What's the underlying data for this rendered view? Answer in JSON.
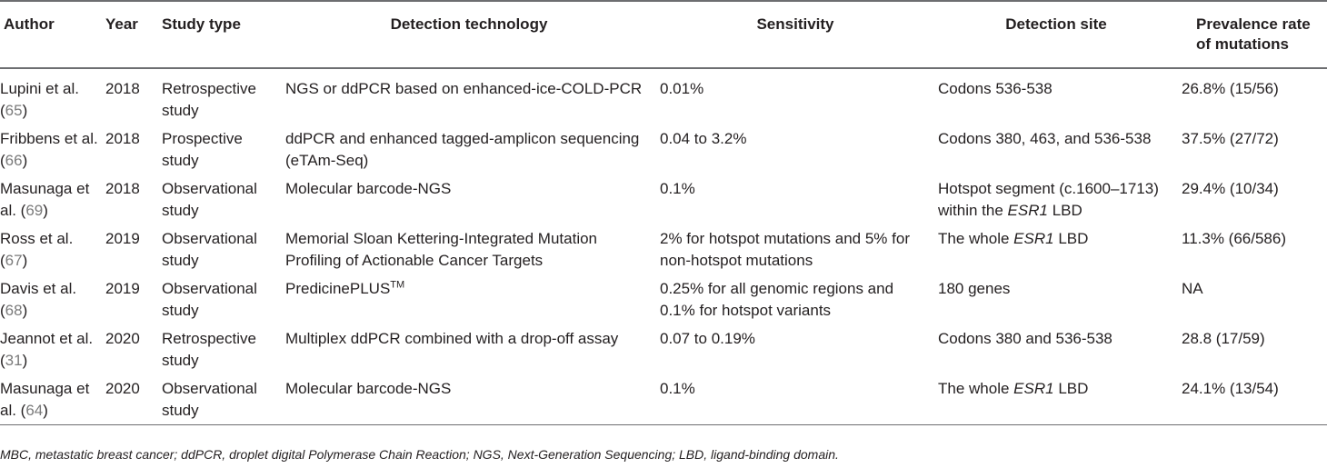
{
  "headers": {
    "author": "Author",
    "year": "Year",
    "study_type": "Study type",
    "detection_technology": "Detection technology",
    "sensitivity": "Sensitivity",
    "detection_site": "Detection site",
    "prevalence_line1": "Prevalence rate",
    "prevalence_line2": "of mutations"
  },
  "rows": [
    {
      "author_name": "Lupini",
      "author_etal": "et al. (",
      "ref": "65",
      "author_close": ")",
      "year": "2018",
      "study_type": "Retrospective study",
      "technology": "NGS or ddPCR based on enhanced-ice-COLD-PCR",
      "sensitivity": "0.01%",
      "site_pre": "Codons 536-538",
      "site_gene": "",
      "site_post": "",
      "prevalence": "26.8% (15/56)"
    },
    {
      "author_name": "Fribbens",
      "author_etal": "et al. (",
      "ref": "66",
      "author_close": ")",
      "year": "2018",
      "study_type": "Prospective study",
      "technology": "ddPCR and enhanced tagged-amplicon sequencing (eTAm-Seq)",
      "sensitivity": "0.04 to 3.2%",
      "site_pre": "Codons 380, 463, and 536-538",
      "site_gene": "",
      "site_post": "",
      "prevalence": "37.5% (27/72)"
    },
    {
      "author_name": "Masunaga",
      "author_etal": "et al. (",
      "ref": "69",
      "author_close": ")",
      "year": "2018",
      "study_type": "Observational study",
      "technology": "Molecular barcode-NGS",
      "sensitivity": "0.1%",
      "site_pre": "Hotspot segment (c.1600–1713) within the ",
      "site_gene": "ESR1",
      "site_post": " LBD",
      "prevalence": "29.4% (10/34)"
    },
    {
      "author_name": "Ross et al.",
      "author_etal": " (",
      "ref": "67",
      "author_close": ")",
      "year": "2019",
      "study_type": "Observational study",
      "technology": "Memorial Sloan Kettering-Integrated Mutation Profiling of Actionable Cancer Targets",
      "sensitivity": "2% for hotspot mutations and 5% for non-hotspot mutations",
      "site_pre": "The whole ",
      "site_gene": "ESR1",
      "site_post": " LBD",
      "prevalence": "11.3% (66/586)"
    },
    {
      "author_name": "Davis et al.",
      "author_etal": " (",
      "ref": "68",
      "author_close": ")",
      "year": "2019",
      "study_type": "Observational study",
      "technology": "PredicinePLUS",
      "technology_sup": "TM",
      "sensitivity": "0.25% for all genomic regions and 0.1% for hotspot variants",
      "site_pre": "180 genes",
      "site_gene": "",
      "site_post": "",
      "prevalence": "NA"
    },
    {
      "author_name": "Jeannot",
      "author_etal": "et al. (",
      "ref": "31",
      "author_close": ")",
      "year": "2020",
      "study_type": "Retrospective study",
      "technology": "Multiplex ddPCR combined with a drop-off assay",
      "sensitivity": "0.07 to 0.19%",
      "site_pre": "Codons 380 and 536-538",
      "site_gene": "",
      "site_post": "",
      "prevalence": "28.8 (17/59)"
    },
    {
      "author_name": "Masunaga",
      "author_etal": "et al. (",
      "ref": "64",
      "author_close": ")",
      "year": "2020",
      "study_type": "Observational study",
      "technology": "Molecular barcode-NGS",
      "sensitivity": "0.1%",
      "site_pre": "The whole ",
      "site_gene": "ESR1",
      "site_post": " LBD",
      "prevalence": "24.1% (13/54)"
    }
  ],
  "footnote": "MBC, metastatic breast cancer; ddPCR, droplet digital Polymerase Chain Reaction; NGS, Next-Generation Sequencing; LBD, ligand-binding domain."
}
